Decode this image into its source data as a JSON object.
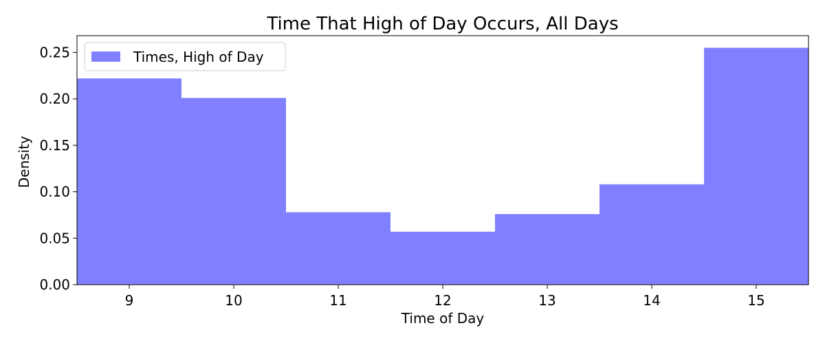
{
  "chart_data": {
    "type": "bar",
    "title": "Time That High of Day Occurs, All Days",
    "xlabel": "Time of Day",
    "ylabel": "Density",
    "categories": [
      "9",
      "10",
      "11",
      "12",
      "13",
      "14",
      "15"
    ],
    "x": [
      9,
      10,
      11,
      12,
      13,
      14,
      15
    ],
    "series": [
      {
        "name": "Times, High of Day",
        "values": [
          0.222,
          0.201,
          0.078,
          0.057,
          0.076,
          0.108,
          0.255
        ],
        "color": "#8080ff"
      }
    ],
    "xlim": [
      8.5,
      15.5
    ],
    "ylim": [
      0,
      0.268
    ],
    "yticks": [
      "0.00",
      "0.05",
      "0.10",
      "0.15",
      "0.20",
      "0.25"
    ],
    "ytick_values": [
      0,
      0.05,
      0.1,
      0.15,
      0.2,
      0.25
    ],
    "grid": false,
    "legend_position": "top-left"
  }
}
